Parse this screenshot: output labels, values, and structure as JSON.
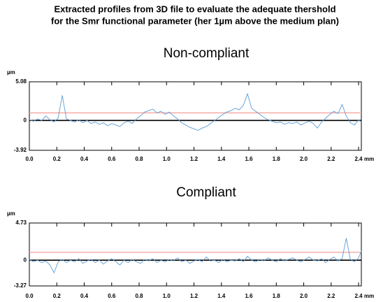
{
  "title": [
    "Extracted profiles from 3D file to evaluate the adequate thershold",
    "for the Smr functional parameter (her 1µm above the medium plan)"
  ],
  "chart_data": [
    {
      "type": "line",
      "title": "Non-compliant",
      "y_unit": "µm",
      "x_unit": "mm",
      "xlim": [
        0,
        2.42
      ],
      "ylim": [
        -3.92,
        5.08
      ],
      "yticks": [
        5.08,
        0,
        -3.92
      ],
      "xticks": [
        {
          "value": 0,
          "label": "0.0"
        },
        0.2,
        0.4,
        0.6,
        0.8,
        {
          "value": 1,
          "label": "1.0"
        },
        1.2,
        1.4,
        1.6,
        1.8,
        {
          "value": 2,
          "label": "2.0"
        },
        2.2,
        2.4
      ],
      "hlines": [
        {
          "value": 1,
          "color": "#f4a6a0"
        },
        {
          "value": 0,
          "color": "#000000"
        }
      ],
      "x": [
        0,
        0.03,
        0.06,
        0.09,
        0.12,
        0.15,
        0.18,
        0.21,
        0.24,
        0.27,
        0.3,
        0.33,
        0.36,
        0.39,
        0.42,
        0.45,
        0.48,
        0.51,
        0.54,
        0.57,
        0.6,
        0.63,
        0.66,
        0.69,
        0.72,
        0.75,
        0.78,
        0.81,
        0.84,
        0.87,
        0.9,
        0.93,
        0.96,
        0.99,
        1.02,
        1.05,
        1.08,
        1.11,
        1.14,
        1.17,
        1.2,
        1.23,
        1.26,
        1.29,
        1.32,
        1.35,
        1.38,
        1.41,
        1.44,
        1.47,
        1.5,
        1.53,
        1.56,
        1.59,
        1.62,
        1.65,
        1.68,
        1.71,
        1.74,
        1.77,
        1.8,
        1.83,
        1.86,
        1.89,
        1.92,
        1.95,
        1.98,
        2.01,
        2.04,
        2.07,
        2.1,
        2.13,
        2.16,
        2.19,
        2.22,
        2.25,
        2.28,
        2.31,
        2.34,
        2.37,
        2.4,
        2.42
      ],
      "series": [
        {
          "color": "#5b9bd5",
          "values": [
            0.1,
            -0.1,
            0.2,
            0.0,
            0.6,
            0.1,
            -0.2,
            0.3,
            3.3,
            0.2,
            0.0,
            -0.2,
            0.1,
            -0.3,
            0.0,
            -0.4,
            -0.2,
            -0.5,
            -0.3,
            -0.7,
            -0.4,
            -0.6,
            -0.8,
            -0.3,
            -0.1,
            -0.4,
            0.2,
            0.6,
            1.1,
            1.3,
            1.5,
            1.0,
            1.2,
            0.8,
            1.1,
            0.6,
            0.2,
            -0.3,
            -0.6,
            -0.9,
            -1.1,
            -1.3,
            -1.0,
            -0.8,
            -0.4,
            0.0,
            0.4,
            0.8,
            1.1,
            1.3,
            1.6,
            1.4,
            2.0,
            3.5,
            1.6,
            1.2,
            0.8,
            0.4,
            0.1,
            -0.1,
            -0.3,
            -0.2,
            -0.5,
            -0.3,
            -0.4,
            -0.2,
            -0.6,
            -0.3,
            -0.1,
            -0.4,
            -1.0,
            -0.2,
            0.3,
            0.8,
            1.2,
            0.9,
            2.1,
            0.6,
            -0.3,
            -0.6,
            0.1,
            -0.2
          ]
        }
      ]
    },
    {
      "type": "line",
      "title": "Compliant",
      "y_unit": "µm",
      "x_unit": "mm",
      "xlim": [
        0,
        2.42
      ],
      "ylim": [
        -3.27,
        4.73
      ],
      "yticks": [
        4.73,
        0,
        -3.27
      ],
      "xticks": [
        {
          "value": 0,
          "label": "0.0"
        },
        0.2,
        0.4,
        0.6,
        0.8,
        {
          "value": 1,
          "label": "1.0"
        },
        1.2,
        1.4,
        1.6,
        1.8,
        {
          "value": 2,
          "label": "2.0"
        },
        2.2,
        2.4
      ],
      "hlines": [
        {
          "value": 1,
          "color": "#f4a6a0"
        },
        {
          "value": 0,
          "color": "#000000"
        }
      ],
      "x": [
        0,
        0.03,
        0.06,
        0.09,
        0.12,
        0.15,
        0.18,
        0.21,
        0.24,
        0.27,
        0.3,
        0.33,
        0.36,
        0.39,
        0.42,
        0.45,
        0.48,
        0.51,
        0.54,
        0.57,
        0.6,
        0.63,
        0.66,
        0.69,
        0.72,
        0.75,
        0.78,
        0.81,
        0.84,
        0.87,
        0.9,
        0.93,
        0.96,
        0.99,
        1.02,
        1.05,
        1.08,
        1.11,
        1.14,
        1.17,
        1.2,
        1.23,
        1.26,
        1.29,
        1.32,
        1.35,
        1.38,
        1.41,
        1.44,
        1.47,
        1.5,
        1.53,
        1.56,
        1.59,
        1.62,
        1.65,
        1.68,
        1.71,
        1.74,
        1.77,
        1.8,
        1.83,
        1.86,
        1.89,
        1.92,
        1.95,
        1.98,
        2.01,
        2.04,
        2.07,
        2.1,
        2.13,
        2.16,
        2.19,
        2.22,
        2.25,
        2.28,
        2.31,
        2.34,
        2.37,
        2.4,
        2.42
      ],
      "series": [
        {
          "color": "#5b9bd5",
          "values": [
            0.1,
            -0.2,
            0.0,
            -0.3,
            -0.1,
            -0.6,
            -1.6,
            -0.2,
            0.1,
            -0.3,
            0.0,
            -0.2,
            0.2,
            -0.4,
            -0.1,
            0.1,
            -0.3,
            0.0,
            -0.5,
            -0.1,
            0.2,
            -0.2,
            -0.6,
            0.0,
            -0.3,
            0.1,
            -0.2,
            -0.4,
            0.1,
            -0.1,
            0.2,
            -0.3,
            0.0,
            -0.2,
            0.1,
            -0.1,
            0.3,
            -0.2,
            0.0,
            -0.4,
            -0.1,
            0.1,
            -0.2,
            0.4,
            -0.1,
            0.0,
            -0.3,
            0.1,
            -0.2,
            0.0,
            -0.1,
            0.2,
            -0.2,
            0.5,
            0.0,
            -0.2,
            0.1,
            -0.1,
            0.3,
            0.0,
            -0.2,
            0.2,
            -0.1,
            0.1,
            0.3,
            0.0,
            -0.2,
            0.1,
            0.4,
            0.0,
            -0.1,
            0.2,
            -0.3,
            0.1,
            0.4,
            -0.1,
            0.2,
            2.8,
            0.1,
            -0.2,
            0.3,
            1.2
          ]
        }
      ]
    }
  ]
}
